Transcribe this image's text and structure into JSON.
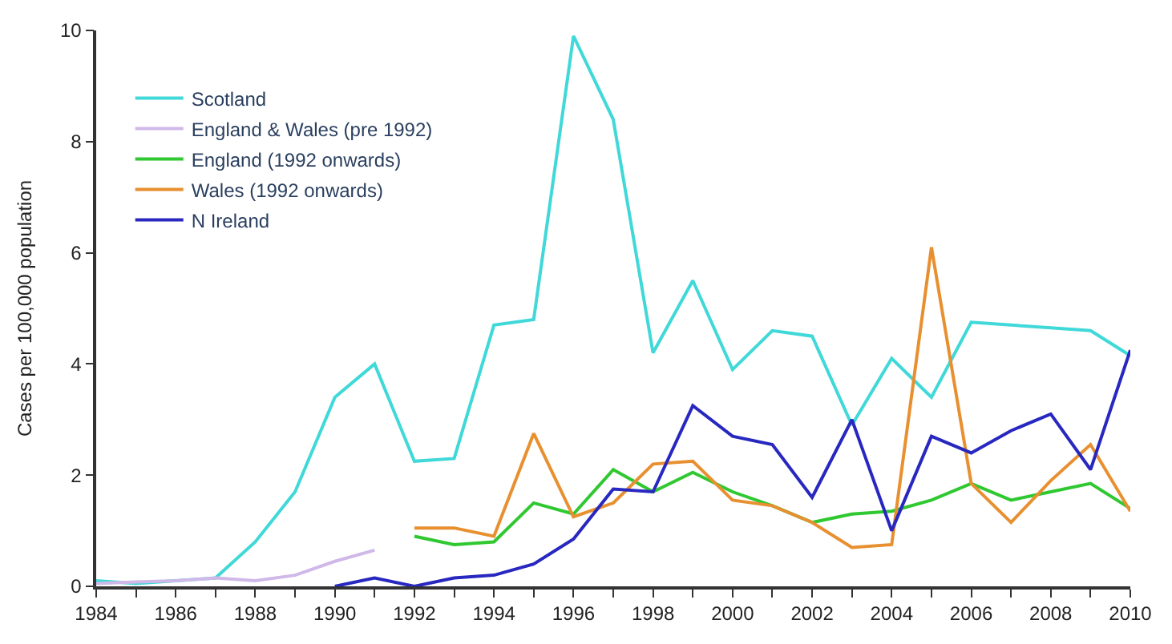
{
  "chart_data": {
    "type": "line",
    "ylabel": "Cases per 100,000 population",
    "xlim": [
      1984,
      2010
    ],
    "ylim": [
      0,
      10
    ],
    "xticks": [
      1984,
      {
        "value": 1985,
        "label": null
      },
      1986,
      {
        "value": 1987,
        "label": null
      },
      1988,
      {
        "value": 1989,
        "label": null
      },
      1990,
      {
        "value": 1991,
        "label": null
      },
      1992,
      {
        "value": 1993,
        "label": null
      },
      1994,
      {
        "value": 1995,
        "label": null
      },
      1996,
      {
        "value": 1997,
        "label": null
      },
      1998,
      {
        "value": 1999,
        "label": null
      },
      2000,
      {
        "value": 2001,
        "label": null
      },
      2002,
      {
        "value": 2003,
        "label": null
      },
      2004,
      {
        "value": 2005,
        "label": null
      },
      2006,
      {
        "value": 2007,
        "label": null
      },
      2008,
      {
        "value": 2009,
        "label": null
      },
      2010
    ],
    "yticks": [
      0,
      2,
      4,
      6,
      8,
      10
    ],
    "legend": "top left",
    "marker": "none",
    "line_style": "solid",
    "series": [
      {
        "name": "Scotland",
        "color": "#40d8d8",
        "x": [
          1984,
          1985,
          1986,
          1987,
          1988,
          1989,
          1990,
          1991,
          1992,
          1993,
          1994,
          1995,
          1996,
          1997,
          1998,
          1999,
          2000,
          2001,
          2002,
          2003,
          2004,
          2005,
          2006,
          2007,
          2008,
          2009,
          2010
        ],
        "values": [
          0.1,
          0.05,
          0.1,
          0.15,
          0.8,
          1.7,
          3.4,
          4.0,
          2.25,
          2.3,
          4.7,
          4.8,
          9.9,
          8.4,
          4.2,
          5.5,
          3.9,
          4.6,
          4.5,
          2.9,
          4.1,
          3.4,
          4.75,
          4.7,
          4.65,
          4.6,
          4.15
        ]
      },
      {
        "name": "England & Wales (pre 1992)",
        "color": "#d0b8e8",
        "x": [
          1984,
          1985,
          1986,
          1987,
          1988,
          1989,
          1990,
          1991
        ],
        "values": [
          0.05,
          0.08,
          0.1,
          0.15,
          0.1,
          0.2,
          0.45,
          0.65
        ]
      },
      {
        "name": "England (1992 onwards)",
        "color": "#30c830",
        "x": [
          1992,
          1993,
          1994,
          1995,
          1996,
          1997,
          1998,
          1999,
          2000,
          2001,
          2002,
          2003,
          2004,
          2005,
          2006,
          2007,
          2008,
          2009,
          2010
        ],
        "values": [
          0.9,
          0.75,
          0.8,
          1.5,
          1.3,
          2.1,
          1.7,
          2.05,
          1.7,
          1.45,
          1.15,
          1.3,
          1.35,
          1.55,
          1.85,
          1.55,
          1.7,
          1.85,
          1.4
        ]
      },
      {
        "name": "Wales (1992 onwards)",
        "color": "#e89030",
        "x": [
          1992,
          1993,
          1994,
          1995,
          1996,
          1997,
          1998,
          1999,
          2000,
          2001,
          2002,
          2003,
          2004,
          2005,
          2006,
          2007,
          2008,
          2009,
          2010
        ],
        "values": [
          1.05,
          1.05,
          0.9,
          2.75,
          1.25,
          1.5,
          2.2,
          2.25,
          1.55,
          1.45,
          1.15,
          0.7,
          0.75,
          6.1,
          1.85,
          1.15,
          1.9,
          2.55,
          1.35
        ]
      },
      {
        "name": "N Ireland",
        "color": "#2828c0",
        "x": [
          1990,
          1991,
          1992,
          1993,
          1994,
          1995,
          1996,
          1997,
          1998,
          1999,
          2000,
          2001,
          2002,
          2003,
          2004,
          2005,
          2006,
          2007,
          2008,
          2009,
          2010
        ],
        "values": [
          0.0,
          0.15,
          0.0,
          0.15,
          0.2,
          0.4,
          0.85,
          1.75,
          1.7,
          3.25,
          2.7,
          2.55,
          1.6,
          3.0,
          1.0,
          2.7,
          2.4,
          2.8,
          3.1,
          2.1,
          4.25
        ]
      }
    ]
  }
}
